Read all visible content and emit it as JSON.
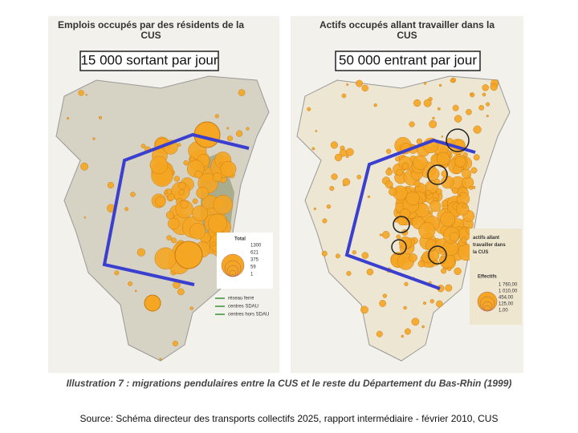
{
  "left_map": {
    "title": "Emplois occupés par des résidents de la CUS",
    "flow": "15 000 sortant par jour",
    "legend": {
      "title": "Total",
      "values": [
        "1300",
        "621",
        "375",
        "59",
        "1"
      ],
      "items": [
        "réseau ferré",
        "centres SDAU",
        "centres hors SDAU"
      ]
    }
  },
  "right_map": {
    "title": "Actifs occupés allant travailler dans la CUS",
    "flow": "50 000 entrant par jour",
    "legend": {
      "title": "actifs allant travailler dans la CUS",
      "subtitle": "Effectifs",
      "values": [
        "1 760,00",
        "1 010,00",
        "454,00",
        "125,00",
        "1,00"
      ]
    }
  },
  "caption": "Illustration 7 : migrations pendulaires entre la CUS et le reste du Département du Bas-Rhin (1999)",
  "source": "Source: Schéma directeur des transports collectifs 2025, rapport intermédiaire - février 2010, CUS"
}
